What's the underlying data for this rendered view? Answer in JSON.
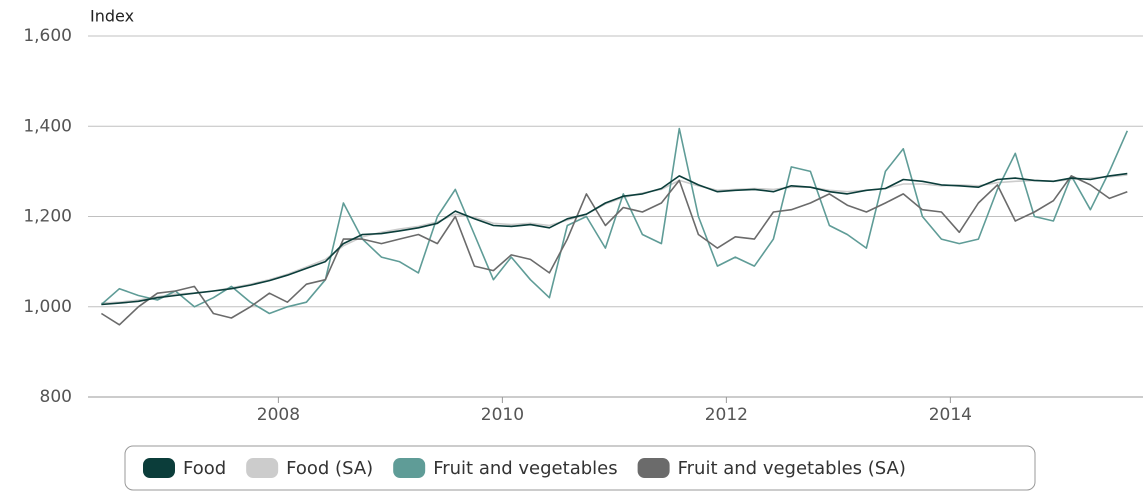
{
  "chart_data": {
    "type": "line",
    "y_label": "Index",
    "x": [
      2006.42,
      2006.58,
      2006.75,
      2006.92,
      2007.08,
      2007.25,
      2007.42,
      2007.58,
      2007.75,
      2007.92,
      2008.08,
      2008.25,
      2008.42,
      2008.58,
      2008.75,
      2008.92,
      2009.08,
      2009.25,
      2009.42,
      2009.58,
      2009.75,
      2009.92,
      2010.08,
      2010.25,
      2010.42,
      2010.58,
      2010.75,
      2010.92,
      2011.08,
      2011.25,
      2011.42,
      2011.58,
      2011.75,
      2011.92,
      2012.08,
      2012.25,
      2012.42,
      2012.58,
      2012.75,
      2012.92,
      2013.08,
      2013.25,
      2013.42,
      2013.58,
      2013.75,
      2013.92,
      2014.08,
      2014.25,
      2014.42,
      2014.58,
      2014.75,
      2014.92,
      2015.08,
      2015.25,
      2015.42,
      2015.58
    ],
    "series": [
      {
        "name": "Food",
        "color": "#0b3d3a",
        "values": [
          1005,
          1008,
          1012,
          1020,
          1025,
          1030,
          1035,
          1040,
          1048,
          1058,
          1070,
          1085,
          1100,
          1140,
          1160,
          1162,
          1168,
          1175,
          1185,
          1212,
          1195,
          1180,
          1178,
          1182,
          1175,
          1195,
          1205,
          1230,
          1245,
          1250,
          1262,
          1290,
          1270,
          1255,
          1258,
          1260,
          1255,
          1268,
          1265,
          1255,
          1250,
          1258,
          1262,
          1282,
          1278,
          1270,
          1268,
          1265,
          1282,
          1285,
          1280,
          1278,
          1285,
          1282,
          1290,
          1295
        ]
      },
      {
        "name": "Food (SA)",
        "color": "#cccccc",
        "values": [
          1008,
          1010,
          1015,
          1022,
          1028,
          1030,
          1035,
          1042,
          1050,
          1060,
          1072,
          1088,
          1105,
          1135,
          1155,
          1165,
          1172,
          1178,
          1188,
          1205,
          1198,
          1185,
          1182,
          1185,
          1180,
          1192,
          1205,
          1228,
          1242,
          1252,
          1260,
          1280,
          1268,
          1258,
          1260,
          1262,
          1260,
          1265,
          1265,
          1258,
          1255,
          1258,
          1262,
          1272,
          1272,
          1268,
          1270,
          1268,
          1275,
          1278,
          1280,
          1278,
          1282,
          1285,
          1288,
          1292
        ]
      },
      {
        "name": "Fruit and vegetables",
        "color": "#5f9c97",
        "values": [
          1005,
          1040,
          1025,
          1015,
          1035,
          1000,
          1020,
          1045,
          1010,
          985,
          1000,
          1010,
          1060,
          1230,
          1150,
          1110,
          1100,
          1075,
          1200,
          1260,
          1160,
          1060,
          1110,
          1060,
          1020,
          1180,
          1200,
          1130,
          1250,
          1160,
          1140,
          1395,
          1200,
          1090,
          1110,
          1090,
          1150,
          1310,
          1300,
          1180,
          1160,
          1130,
          1300,
          1350,
          1200,
          1150,
          1140,
          1150,
          1260,
          1340,
          1200,
          1190,
          1290,
          1215,
          1300,
          1390
        ]
      },
      {
        "name": "Fruit and vegetables (SA)",
        "color": "#6b6b6b",
        "values": [
          985,
          960,
          1000,
          1030,
          1035,
          1045,
          985,
          975,
          1000,
          1030,
          1010,
          1050,
          1060,
          1150,
          1150,
          1140,
          1150,
          1160,
          1140,
          1200,
          1090,
          1080,
          1115,
          1105,
          1075,
          1150,
          1250,
          1180,
          1220,
          1210,
          1230,
          1280,
          1160,
          1130,
          1155,
          1150,
          1210,
          1215,
          1230,
          1250,
          1225,
          1210,
          1230,
          1250,
          1215,
          1210,
          1165,
          1230,
          1270,
          1190,
          1210,
          1235,
          1290,
          1270,
          1240,
          1255
        ]
      }
    ],
    "xlim": [
      2006.3,
      2015.72
    ],
    "xticks": [
      2008,
      2010,
      2012,
      2014
    ],
    "ylim": [
      800,
      1600
    ],
    "yticks": [
      800,
      {
        "value": 1000,
        "label": "1,000"
      },
      {
        "value": 1200,
        "label": "1,200"
      },
      {
        "value": 1400,
        "label": "1,400"
      },
      {
        "value": 1600,
        "label": "1,600"
      }
    ],
    "grid": true,
    "legend": "bottom"
  }
}
